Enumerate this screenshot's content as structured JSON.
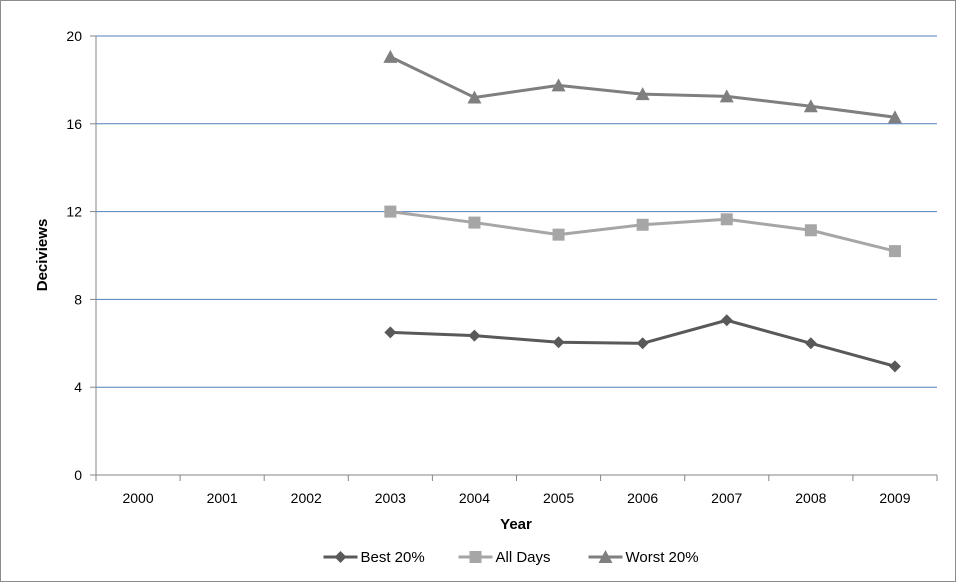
{
  "chart_data": {
    "type": "line",
    "title": "",
    "xlabel": "Year",
    "ylabel": "Deciviews",
    "categories": [
      "2000",
      "2001",
      "2002",
      "2003",
      "2004",
      "2005",
      "2006",
      "2007",
      "2008",
      "2009"
    ],
    "ylim": [
      0,
      20
    ],
    "yticks": [
      "0",
      "4",
      "8",
      "12",
      "16",
      "20"
    ],
    "grid": "horizontal",
    "legend_position": "bottom",
    "series": [
      {
        "name": "Best 20%",
        "marker": "diamond",
        "color": "#595959",
        "values": [
          null,
          null,
          null,
          6.5,
          6.35,
          6.05,
          6.0,
          7.05,
          6.0,
          4.95
        ]
      },
      {
        "name": "All Days",
        "marker": "square",
        "color": "#a6a6a6",
        "values": [
          null,
          null,
          null,
          12.0,
          11.5,
          10.95,
          11.4,
          11.65,
          11.15,
          10.2
        ]
      },
      {
        "name": "Worst 20%",
        "marker": "triangle",
        "color": "#7f7f7f",
        "values": [
          null,
          null,
          null,
          19.05,
          17.2,
          17.75,
          17.35,
          17.25,
          16.8,
          16.3
        ]
      }
    ]
  }
}
